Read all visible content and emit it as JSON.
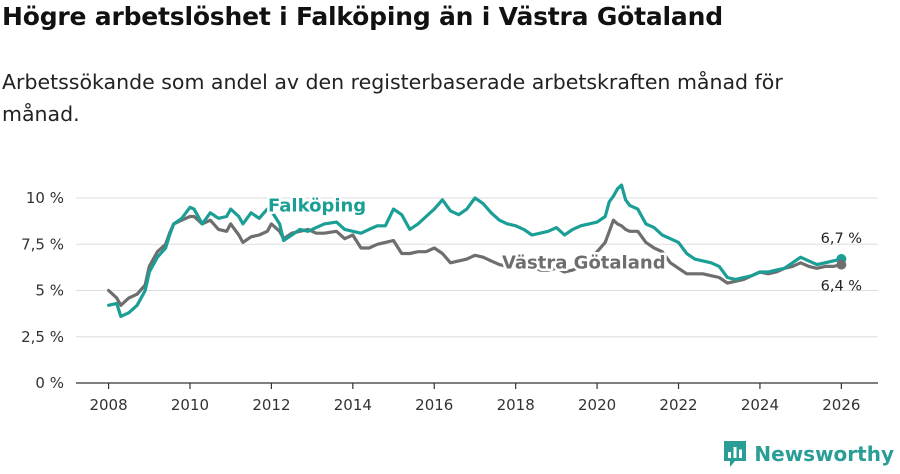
{
  "header": {
    "title": "Högre arbetslöshet i Falköping än i Västra Götaland",
    "subtitle": "Arbetssökande som andel av den registerbaserade arbetskraften månad för månad."
  },
  "brand": {
    "name": "Newsworthy",
    "icon": "bar-chart-logo-icon"
  },
  "colors": {
    "falkoping": "#1a9e96",
    "vastra": "#6e6e6e",
    "grid": "#dddddd",
    "axis": "#333333"
  },
  "chart_data": {
    "type": "line",
    "title": "Högre arbetslöshet i Falköping än i Västra Götaland",
    "xlabel": "",
    "ylabel": "",
    "xlim": [
      2007.2,
      2026.9
    ],
    "ylim": [
      0,
      10
    ],
    "x_ticks": [
      2008,
      2010,
      2012,
      2014,
      2016,
      2018,
      2020,
      2022,
      2024,
      2026
    ],
    "x_tick_labels": [
      "2008",
      "2010",
      "2012",
      "2014",
      "2016",
      "2018",
      "2020",
      "2022",
      "2024",
      "2026"
    ],
    "y_ticks": [
      0,
      2.5,
      5,
      7.5,
      10
    ],
    "y_tick_labels": [
      "0 %",
      "2,5 %",
      "5 %",
      "7,5 %",
      "10 %"
    ],
    "grid": true,
    "series": [
      {
        "name": "Falköping",
        "label": "Falköping",
        "end_label": "6,7 %",
        "x": [
          2008.0,
          2008.2,
          2008.3,
          2008.5,
          2008.7,
          2008.9,
          2009.0,
          2009.2,
          2009.4,
          2009.5,
          2009.6,
          2009.8,
          2009.9,
          2010.0,
          2010.1,
          2010.3,
          2010.5,
          2010.7,
          2010.9,
          2011.0,
          2011.2,
          2011.3,
          2011.5,
          2011.7,
          2011.9,
          2012.0,
          2012.2,
          2012.3,
          2012.5,
          2012.7,
          2012.9,
          2013.1,
          2013.3,
          2013.6,
          2013.8,
          2014.0,
          2014.2,
          2014.4,
          2014.6,
          2014.8,
          2015.0,
          2015.2,
          2015.4,
          2015.6,
          2015.8,
          2016.0,
          2016.2,
          2016.4,
          2016.6,
          2016.8,
          2017.0,
          2017.2,
          2017.4,
          2017.6,
          2017.8,
          2018.0,
          2018.2,
          2018.4,
          2018.6,
          2018.8,
          2019.0,
          2019.2,
          2019.4,
          2019.6,
          2019.8,
          2020.0,
          2020.2,
          2020.3,
          2020.4,
          2020.5,
          2020.6,
          2020.7,
          2020.8,
          2021.0,
          2021.2,
          2021.4,
          2021.6,
          2021.8,
          2022.0,
          2022.2,
          2022.4,
          2022.6,
          2022.8,
          2023.0,
          2023.2,
          2023.4,
          2023.6,
          2023.8,
          2024.0,
          2024.2,
          2024.4,
          2024.6,
          2024.8,
          2025.0,
          2025.2,
          2025.4,
          2025.6,
          2025.8,
          2026.0
        ],
        "y": [
          4.2,
          4.3,
          3.6,
          3.8,
          4.2,
          5.0,
          6.0,
          6.8,
          7.3,
          8.0,
          8.6,
          8.9,
          9.2,
          9.5,
          9.4,
          8.6,
          9.2,
          8.9,
          9.0,
          9.4,
          9.0,
          8.6,
          9.2,
          8.9,
          9.4,
          9.3,
          8.6,
          7.7,
          8.0,
          8.3,
          8.2,
          8.4,
          8.6,
          8.7,
          8.3,
          8.2,
          8.1,
          8.3,
          8.5,
          8.5,
          9.4,
          9.1,
          8.3,
          8.6,
          9.0,
          9.4,
          9.9,
          9.3,
          9.1,
          9.4,
          10.0,
          9.7,
          9.2,
          8.8,
          8.6,
          8.5,
          8.3,
          8.0,
          8.1,
          8.2,
          8.4,
          8.0,
          8.3,
          8.5,
          8.6,
          8.7,
          9.0,
          9.8,
          10.1,
          10.5,
          10.7,
          9.9,
          9.6,
          9.4,
          8.6,
          8.4,
          8.0,
          7.8,
          7.6,
          7.0,
          6.7,
          6.6,
          6.5,
          6.3,
          5.7,
          5.6,
          5.7,
          5.8,
          6.0,
          6.0,
          6.1,
          6.2,
          6.5,
          6.8,
          6.6,
          6.4,
          6.5,
          6.6,
          6.7
        ]
      },
      {
        "name": "Västra Götaland",
        "label": "Västra Götaland",
        "end_label": "6,4 %",
        "x": [
          2008.0,
          2008.2,
          2008.3,
          2008.5,
          2008.7,
          2008.9,
          2009.0,
          2009.2,
          2009.4,
          2009.5,
          2009.6,
          2009.8,
          2009.9,
          2010.0,
          2010.1,
          2010.3,
          2010.5,
          2010.7,
          2010.9,
          2011.0,
          2011.2,
          2011.3,
          2011.5,
          2011.7,
          2011.9,
          2012.0,
          2012.2,
          2012.3,
          2012.5,
          2012.7,
          2012.9,
          2013.1,
          2013.3,
          2013.6,
          2013.8,
          2014.0,
          2014.2,
          2014.4,
          2014.6,
          2014.8,
          2015.0,
          2015.2,
          2015.4,
          2015.6,
          2015.8,
          2016.0,
          2016.2,
          2016.4,
          2016.6,
          2016.8,
          2017.0,
          2017.2,
          2017.4,
          2017.6,
          2017.8,
          2018.0,
          2018.2,
          2018.4,
          2018.6,
          2018.8,
          2019.0,
          2019.2,
          2019.4,
          2019.6,
          2019.8,
          2020.0,
          2020.2,
          2020.3,
          2020.4,
          2020.5,
          2020.6,
          2020.7,
          2020.8,
          2021.0,
          2021.2,
          2021.4,
          2021.6,
          2021.8,
          2022.0,
          2022.2,
          2022.4,
          2022.6,
          2022.8,
          2023.0,
          2023.2,
          2023.4,
          2023.6,
          2023.8,
          2024.0,
          2024.2,
          2024.4,
          2024.6,
          2024.8,
          2025.0,
          2025.2,
          2025.4,
          2025.6,
          2025.8,
          2026.0
        ],
        "y": [
          5.0,
          4.6,
          4.2,
          4.6,
          4.8,
          5.3,
          6.3,
          7.1,
          7.5,
          8.1,
          8.6,
          8.8,
          8.9,
          9.0,
          9.0,
          8.6,
          8.8,
          8.3,
          8.2,
          8.6,
          8.0,
          7.6,
          7.9,
          8.0,
          8.2,
          8.6,
          8.2,
          7.8,
          8.1,
          8.2,
          8.3,
          8.1,
          8.1,
          8.2,
          7.8,
          8.0,
          7.3,
          7.3,
          7.5,
          7.6,
          7.7,
          7.0,
          7.0,
          7.1,
          7.1,
          7.3,
          7.0,
          6.5,
          6.6,
          6.7,
          6.9,
          6.8,
          6.6,
          6.4,
          6.3,
          6.4,
          6.5,
          6.3,
          6.1,
          6.1,
          6.2,
          6.0,
          6.1,
          6.3,
          6.6,
          7.1,
          7.6,
          8.2,
          8.8,
          8.6,
          8.5,
          8.3,
          8.2,
          8.2,
          7.6,
          7.3,
          7.1,
          6.5,
          6.2,
          5.9,
          5.9,
          5.9,
          5.8,
          5.7,
          5.4,
          5.5,
          5.6,
          5.8,
          6.0,
          5.9,
          6.0,
          6.2,
          6.3,
          6.5,
          6.3,
          6.2,
          6.3,
          6.3,
          6.4
        ]
      }
    ]
  }
}
